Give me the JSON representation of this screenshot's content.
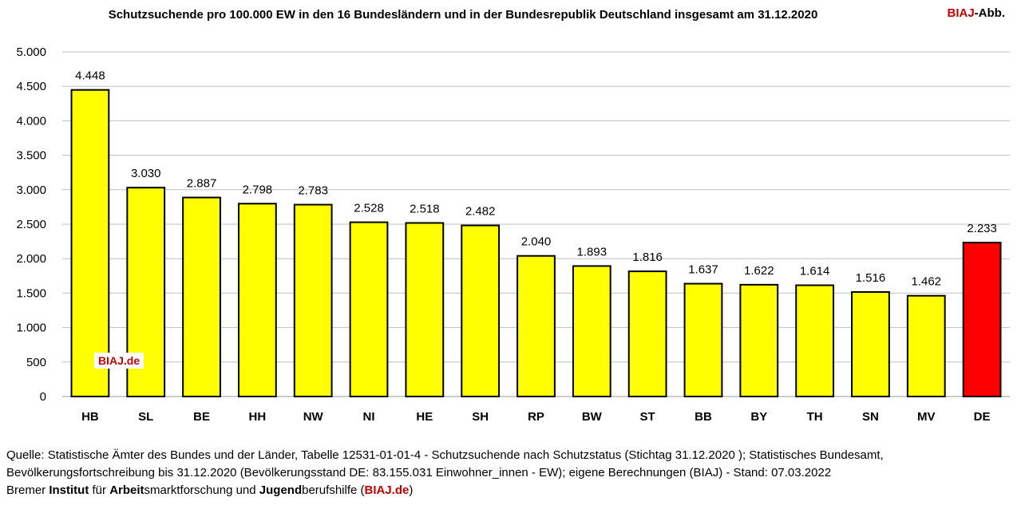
{
  "title": "Schutzsuchende pro 100.000 EW in den 16 Bundesländern und in der Bundesrepublik Deutschland insgesamt am 31.12.2020",
  "corner": {
    "brand": "BIAJ",
    "suffix": "-Abb."
  },
  "watermark": "BIAJ.de",
  "colors": {
    "bar": "#ffff00",
    "highlight": "#ff0000",
    "grid": "#bfbfbf",
    "brand_red": "#c00000"
  },
  "chart_data": {
    "type": "bar",
    "categories": [
      "HB",
      "SL",
      "BE",
      "HH",
      "NW",
      "NI",
      "HE",
      "SH",
      "RP",
      "BW",
      "ST",
      "BB",
      "BY",
      "TH",
      "SN",
      "MV",
      "DE"
    ],
    "values": [
      4448,
      3030,
      2887,
      2798,
      2783,
      2528,
      2518,
      2482,
      2040,
      1893,
      1816,
      1637,
      1622,
      1614,
      1516,
      1462,
      2233
    ],
    "value_labels": [
      "4.448",
      "3.030",
      "2.887",
      "2.798",
      "2.783",
      "2.528",
      "2.518",
      "2.482",
      "2.040",
      "1.893",
      "1.816",
      "1.637",
      "1.622",
      "1.614",
      "1.516",
      "1.462",
      "2.233"
    ],
    "highlight_category": "DE",
    "ylim": [
      0,
      5000
    ],
    "yticks": [
      0,
      500,
      1000,
      1500,
      2000,
      2500,
      3000,
      3500,
      4000,
      4500,
      5000
    ],
    "ytick_labels": [
      "0",
      "500",
      "1.000",
      "1.500",
      "2.000",
      "2.500",
      "3.000",
      "3.500",
      "4.000",
      "4.500",
      "5.000"
    ],
    "grid": true,
    "xlabel": "",
    "ylabel": ""
  },
  "source": {
    "line1": "Quelle: Statistische Ämter des Bundes und der Länder, Tabelle 12531-01-01-4 - Schutzsuchende nach Schutzstatus (Stichtag 31.12.2020 ); Statistisches Bundesamt,",
    "line2": "Bevölkerungsfortschreibung bis 31.12.2020 (Bevölkerungsstand DE: 83.155.031 Einwohner_innen - EW); eigene Berechnungen (BIAJ) - Stand: 07.03.2022",
    "line3_parts": [
      "Bremer ",
      "Institut",
      " für ",
      "Arbeit",
      "smarktforschung und ",
      "Jugend",
      "berufshilfe (",
      "BIAJ.de",
      ")"
    ]
  }
}
